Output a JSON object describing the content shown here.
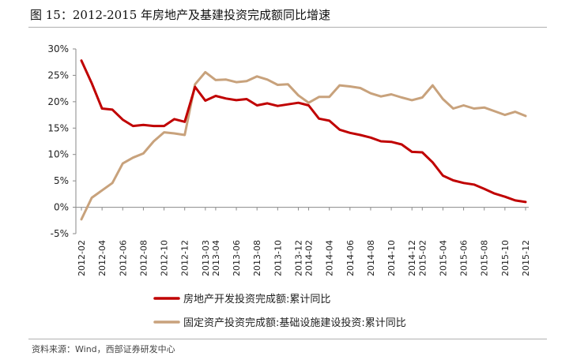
{
  "figure": {
    "title": "图 15：2012-2015 年房地产及基建投资完成额同比增速",
    "source": "资料来源：Wind，西部证券研发中心"
  },
  "chart_data": {
    "type": "line",
    "ylim": [
      -5,
      30
    ],
    "yticks": [
      "30%",
      "25%",
      "20%",
      "15%",
      "10%",
      "5%",
      "0%",
      "-5%"
    ],
    "ytick_values": [
      30,
      25,
      20,
      15,
      10,
      5,
      0,
      -5
    ],
    "grid": false,
    "legend_position": "bottom",
    "xtick_labels": [
      "2012-02",
      "2012-04",
      "2012-06",
      "2012-08",
      "2012-10",
      "2012-12",
      "2013-03",
      "2013-04",
      "2013-06",
      "2013-08",
      "2013-10",
      "2013-12",
      "2014-02",
      "2014-04",
      "2014-06",
      "2014-08",
      "2014-10",
      "2014-12",
      "2015-02",
      "2015-04",
      "2015-06",
      "2015-08",
      "2015-10",
      "2015-12"
    ],
    "x": [
      "2012-02",
      "2012-03",
      "2012-04",
      "2012-05",
      "2012-06",
      "2012-07",
      "2012-08",
      "2012-09",
      "2012-10",
      "2012-11",
      "2012-12",
      "2013-02",
      "2013-03",
      "2013-04",
      "2013-05",
      "2013-06",
      "2013-07",
      "2013-08",
      "2013-09",
      "2013-10",
      "2013-11",
      "2013-12",
      "2014-02",
      "2014-03",
      "2014-04",
      "2014-05",
      "2014-06",
      "2014-07",
      "2014-08",
      "2014-09",
      "2014-10",
      "2014-11",
      "2014-12",
      "2015-02",
      "2015-03",
      "2015-04",
      "2015-05",
      "2015-06",
      "2015-07",
      "2015-08",
      "2015-09",
      "2015-10",
      "2015-11",
      "2015-12"
    ],
    "series": [
      {
        "name": "房地产开发投资完成额:累计同比",
        "color": "#c00000",
        "values": [
          27.8,
          23.5,
          18.7,
          18.5,
          16.6,
          15.4,
          15.6,
          15.4,
          15.4,
          16.7,
          16.2,
          22.8,
          20.2,
          21.1,
          20.6,
          20.3,
          20.5,
          19.3,
          19.7,
          19.2,
          19.5,
          19.8,
          19.3,
          16.8,
          16.4,
          14.7,
          14.1,
          13.7,
          13.2,
          12.5,
          12.4,
          11.9,
          10.5,
          10.4,
          8.5,
          6.0,
          5.1,
          4.6,
          4.3,
          3.5,
          2.6,
          2.0,
          1.3,
          1.0
        ]
      },
      {
        "name": "固定资产投资完成额:基础设施建设投资:累计同比",
        "color": "#c8a27c",
        "values": [
          -2.3,
          1.8,
          3.2,
          4.6,
          8.3,
          9.4,
          10.2,
          12.5,
          14.2,
          14.0,
          13.7,
          23.3,
          25.6,
          24.1,
          24.2,
          23.7,
          23.9,
          24.8,
          24.2,
          23.2,
          23.3,
          21.2,
          19.8,
          20.9,
          20.9,
          23.1,
          22.9,
          22.6,
          21.6,
          21.0,
          21.4,
          20.8,
          20.3,
          20.8,
          23.1,
          20.5,
          18.7,
          19.3,
          18.7,
          18.9,
          18.2,
          17.5,
          18.1,
          17.3
        ]
      }
    ]
  }
}
